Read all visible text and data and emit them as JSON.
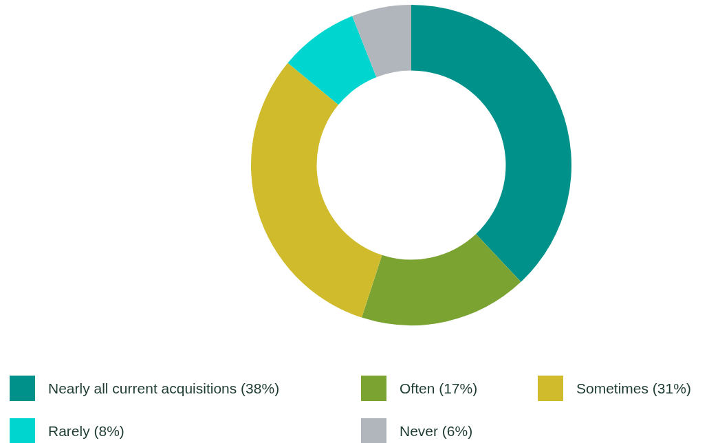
{
  "chart_data": {
    "type": "donut",
    "categories": [
      "Nearly all current acquisitions (38%)",
      "Often (17%)",
      "Sometimes (31%)",
      "Rarely (8%)",
      "Never (6%)"
    ],
    "values": [
      38,
      17,
      31,
      8,
      6
    ],
    "colors": [
      "#00928a",
      "#7aa332",
      "#cfbb2b",
      "#00d6cf",
      "#b0b6bc"
    ],
    "legend": "bottom"
  }
}
